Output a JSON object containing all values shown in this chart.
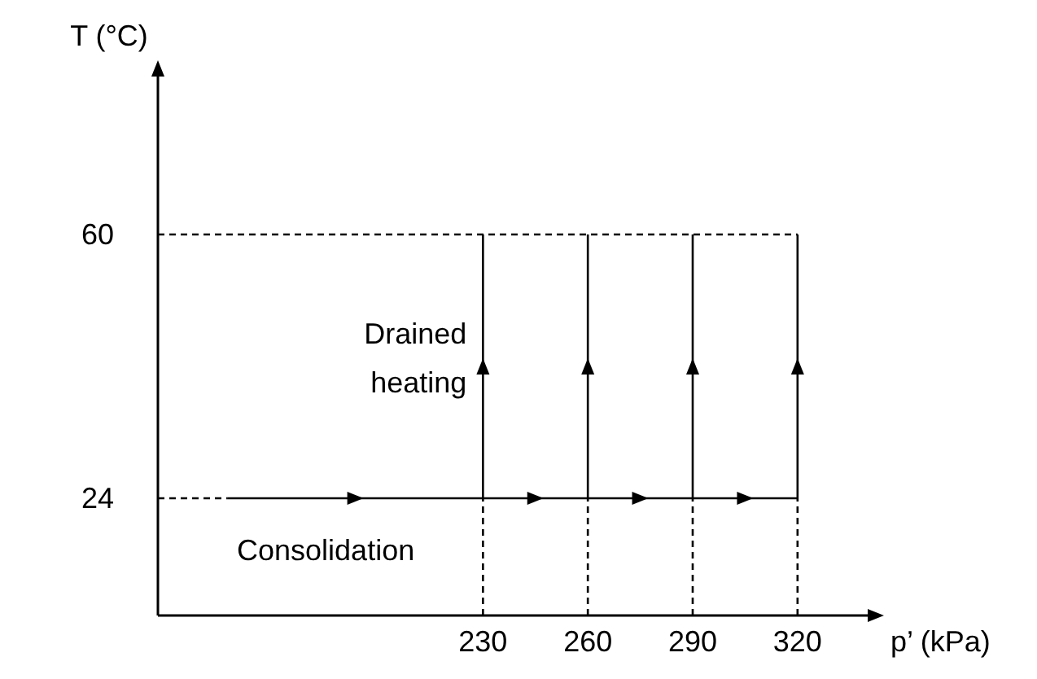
{
  "chart_data": {
    "type": "line",
    "xlabel": "p’ (kPa)",
    "ylabel": "T (°C)",
    "xlim": [
      137,
      341
    ],
    "ylim": [
      8,
      82
    ],
    "xticks": [
      230,
      260,
      290,
      320
    ],
    "yticks": [
      24,
      60
    ],
    "grid": false,
    "marker": "none",
    "series": [
      {
        "color": "#000000",
        "x": [
          157,
          230,
          260,
          290,
          320
        ],
        "values": [
          24,
          24,
          24,
          24,
          24
        ],
        "line_style": "solid"
      },
      {
        "color": "#000000",
        "x": [
          230,
          230
        ],
        "values": [
          24,
          60
        ],
        "line_style": "solid"
      },
      {
        "color": "#000000",
        "x": [
          260,
          260
        ],
        "values": [
          24,
          60
        ],
        "line_style": "solid"
      },
      {
        "color": "#000000",
        "x": [
          290,
          290
        ],
        "values": [
          24,
          60
        ],
        "line_style": "solid"
      },
      {
        "color": "#000000",
        "x": [
          320,
          320
        ],
        "values": [
          24,
          60
        ],
        "line_style": "solid"
      },
      {
        "color": "#000000",
        "x": [
          137,
          320
        ],
        "values": [
          60,
          60
        ],
        "line_style": "dashed"
      },
      {
        "color": "#000000",
        "x": [
          137,
          157
        ],
        "values": [
          24,
          24
        ],
        "line_style": "dashed"
      },
      {
        "color": "#000000",
        "x": [
          230,
          230
        ],
        "values": [
          8,
          24
        ],
        "line_style": "dashed"
      },
      {
        "color": "#000000",
        "x": [
          260,
          260
        ],
        "values": [
          8,
          24
        ],
        "line_style": "dashed"
      },
      {
        "color": "#000000",
        "x": [
          290,
          290
        ],
        "values": [
          8,
          24
        ],
        "line_style": "dashed"
      },
      {
        "color": "#000000",
        "x": [
          320,
          320
        ],
        "values": [
          8,
          24
        ],
        "line_style": "dashed"
      }
    ],
    "annotations": [
      {
        "text": "Drained heating",
        "x": 230,
        "y": 42
      },
      {
        "text": "Consolidation",
        "x": 185,
        "y": 24
      }
    ]
  }
}
